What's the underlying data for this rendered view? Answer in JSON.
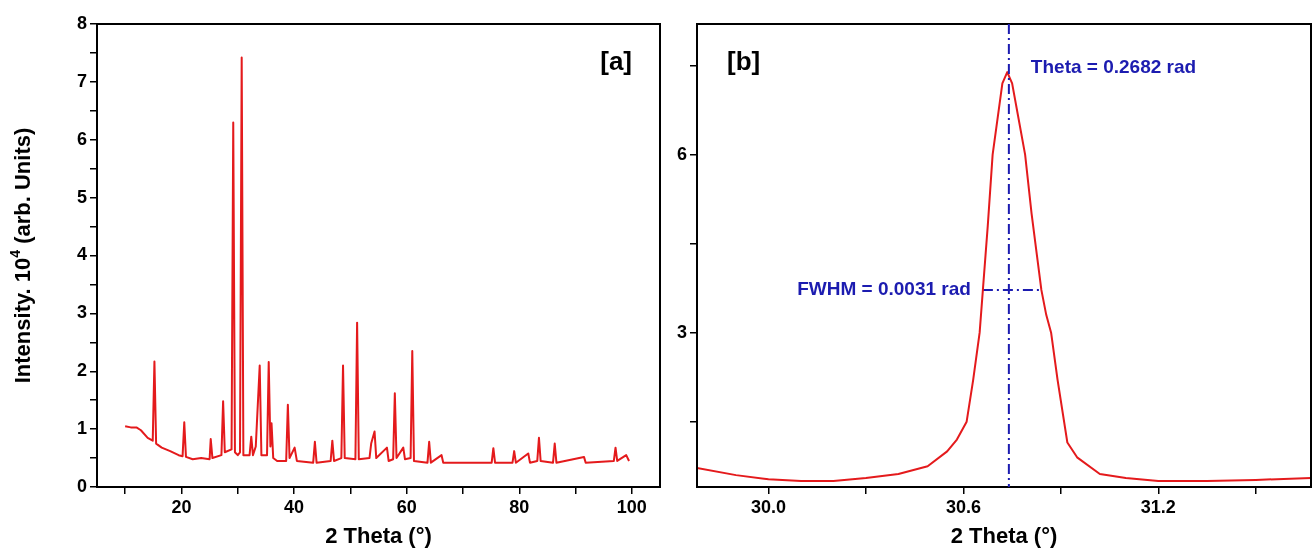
{
  "chart_data": [
    {
      "type": "line",
      "title": "[a]",
      "xlabel": "2 Theta (°)",
      "ylabel": "Intensity. 10$^{4}$ (arb. Units)",
      "xlim": [
        5,
        105
      ],
      "ylim": [
        0,
        8
      ],
      "xticks": [
        {
          "value": 10,
          "label": null
        },
        20,
        {
          "value": 30,
          "label": null
        },
        40,
        {
          "value": 50,
          "label": null
        },
        60,
        {
          "value": 70,
          "label": null
        },
        80,
        {
          "value": 90,
          "label": null
        },
        100
      ],
      "yticks": [
        0,
        {
          "value": 0.5,
          "label": null
        },
        1,
        {
          "value": 1.5,
          "label": null
        },
        2,
        {
          "value": 2.5,
          "label": null
        },
        3,
        {
          "value": 3.5,
          "label": null
        },
        4,
        {
          "value": 4.5,
          "label": null
        },
        5,
        {
          "value": 5.5,
          "label": null
        },
        6,
        {
          "value": 6.5,
          "label": null
        },
        7,
        {
          "value": 7.5,
          "label": null
        },
        8
      ],
      "grid": false,
      "legend": false,
      "series": [
        {
          "color": "#e41a1c",
          "x": [
            10,
            11,
            12,
            12.8,
            14,
            14.9,
            15.2,
            15.5,
            16.5,
            18,
            19.5,
            20.2,
            20.5,
            20.8,
            22,
            23.5,
            25,
            25.2,
            25.5,
            27.1,
            27.4,
            27.7,
            28.9,
            29.2,
            29.5,
            30.0,
            30.4,
            30.7,
            31.0,
            32.1,
            32.4,
            32.7,
            33.2,
            33.4,
            33.9,
            34.2,
            35.2,
            35.5,
            35.8,
            36.0,
            36.3,
            37.0,
            38.6,
            38.9,
            39.2,
            40.1,
            40.5,
            43.4,
            43.7,
            44.0,
            46.5,
            46.8,
            47.1,
            48.4,
            48.7,
            49.0,
            50.9,
            51.2,
            51.5,
            53.4,
            53.7,
            54.3,
            54.6,
            56.5,
            56.8,
            57.6,
            57.9,
            58.2,
            59.4,
            59.7,
            60.7,
            61.0,
            61.3,
            63.7,
            64.0,
            64.3,
            66.2,
            66.5,
            75.1,
            75.4,
            75.7,
            78.8,
            79.1,
            79.4,
            81.6,
            81.9,
            83.2,
            83.5,
            83.8,
            86.0,
            86.3,
            86.6,
            91.5,
            91.8,
            96.8,
            97.1,
            97.4,
            99.0,
            99.5
          ],
          "values": [
            1.05,
            1.03,
            1.03,
            0.98,
            0.85,
            0.8,
            2.17,
            0.75,
            0.68,
            0.62,
            0.55,
            0.53,
            1.12,
            0.52,
            0.48,
            0.5,
            0.48,
            0.83,
            0.5,
            0.55,
            1.48,
            0.6,
            0.65,
            6.3,
            0.6,
            0.55,
            0.6,
            7.42,
            0.55,
            0.55,
            0.87,
            0.55,
            0.7,
            1.1,
            2.1,
            0.55,
            0.55,
            2.16,
            0.7,
            1.1,
            0.5,
            0.45,
            0.45,
            1.42,
            0.5,
            0.68,
            0.45,
            0.42,
            0.78,
            0.42,
            0.45,
            0.8,
            0.45,
            0.5,
            2.1,
            0.5,
            0.48,
            2.84,
            0.48,
            0.5,
            0.75,
            0.96,
            0.5,
            0.68,
            0.45,
            0.48,
            1.62,
            0.5,
            0.68,
            0.48,
            0.5,
            2.35,
            0.45,
            0.42,
            0.78,
            0.42,
            0.55,
            0.42,
            0.42,
            0.67,
            0.42,
            0.42,
            0.62,
            0.42,
            0.58,
            0.42,
            0.45,
            0.85,
            0.45,
            0.42,
            0.75,
            0.42,
            0.52,
            0.42,
            0.45,
            0.68,
            0.45,
            0.55,
            0.45
          ]
        }
      ]
    },
    {
      "type": "line",
      "title": "[b]",
      "xlabel": "2 Theta (°)",
      "xlim": [
        29.78,
        31.67
      ],
      "ylim": [
        0.4,
        8.2
      ],
      "xticks": [
        {
          "value": 30,
          "label": "30.0"
        },
        {
          "value": 30.3,
          "label": null
        },
        30.6,
        {
          "value": 30.9,
          "label": null
        },
        31.2,
        {
          "value": 31.5,
          "label": null
        }
      ],
      "yticks": [
        {
          "value": 1.5,
          "label": null
        },
        3,
        {
          "value": 4.5,
          "label": null
        },
        6,
        {
          "value": 7.5,
          "label": null
        }
      ],
      "grid": false,
      "legend": false,
      "ref_lines": [
        {
          "axis": "x",
          "value": 30.74,
          "color": "#1c1cb0",
          "line_style": "dashed"
        }
      ],
      "annotations": [
        "Theta = 0.2682 rad",
        {
          "text": "FWHM = 0.0031 rad",
          "x": 30.66,
          "y": 3.72
        }
      ],
      "series": [
        {
          "color": "#e41a1c",
          "x": [
            29.78,
            29.9,
            30.0,
            30.1,
            30.2,
            30.3,
            30.4,
            30.49,
            30.55,
            30.58,
            30.61,
            30.63,
            30.65,
            30.66,
            30.675,
            30.69,
            30.72,
            30.735,
            30.75,
            30.79,
            30.81,
            30.84,
            30.855,
            30.87,
            30.89,
            30.92,
            30.95,
            31.02,
            31.1,
            31.2,
            31.35,
            31.5,
            31.67
          ],
          "values": [
            0.72,
            0.6,
            0.53,
            0.5,
            0.5,
            0.55,
            0.62,
            0.75,
            1.0,
            1.2,
            1.5,
            2.2,
            3.0,
            3.72,
            4.8,
            6.0,
            7.2,
            7.39,
            7.2,
            6.0,
            5.0,
            3.72,
            3.3,
            3.0,
            2.2,
            1.15,
            0.9,
            0.62,
            0.55,
            0.5,
            0.5,
            0.52,
            0.55
          ]
        },
        {
          "type": "line",
          "color": "#1c1cb0",
          "line_style": "dashed",
          "x": [
            30.66,
            30.84
          ],
          "values": [
            3.72,
            3.72
          ]
        }
      ]
    }
  ]
}
